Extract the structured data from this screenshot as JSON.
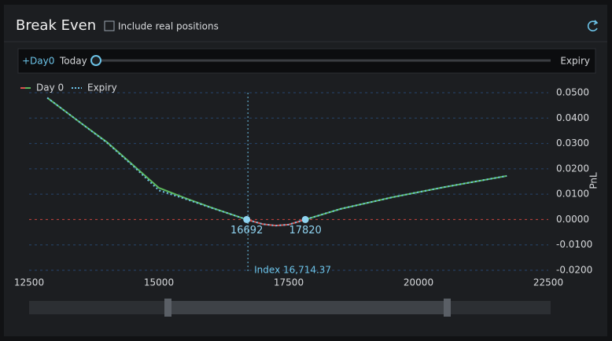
{
  "header": {
    "title": "Break Even",
    "checkbox_label": "Include real positions"
  },
  "toolbar": {
    "day_label": "+Day0",
    "start_label": "Today",
    "end_label": "Expiry"
  },
  "chart_data": {
    "type": "line",
    "x": [
      12850,
      13500,
      14000,
      14500,
      15000,
      15500,
      16000,
      16692,
      17000,
      17250,
      17500,
      17820,
      18500,
      19500,
      20500,
      21700
    ],
    "series": [
      {
        "name": "Day 0",
        "color": "#5cb85c",
        "negative_color": "#d9534f",
        "style": "solid",
        "values": [
          0.048,
          0.038,
          0.0305,
          0.0215,
          0.0125,
          0.0085,
          0.0048,
          0,
          -0.0018,
          -0.0024,
          -0.002,
          0,
          0.0042,
          0.0088,
          0.0128,
          0.0172
        ]
      },
      {
        "name": "Expiry",
        "color": "#6cc3e8",
        "style": "dotted",
        "values": [
          0.048,
          0.038,
          0.0303,
          0.0212,
          0.0115,
          0.0082,
          0.0047,
          0,
          -0.0018,
          -0.0024,
          -0.002,
          0,
          0.0042,
          0.0088,
          0.0128,
          0.0172
        ]
      }
    ],
    "break_even": [
      16692,
      17820
    ],
    "index_value": 16714.37,
    "index_label": "Index 16,714.37",
    "y_axis_label": "PnL",
    "xlim": [
      12500,
      22500
    ],
    "xticks": [
      12500,
      15000,
      17500,
      20000,
      22500
    ],
    "ylim": [
      -0.02,
      0.05
    ],
    "yticks": [
      {
        "value": -0.02,
        "label": "-0.0200"
      },
      {
        "value": -0.01,
        "label": "-0.0100"
      },
      {
        "value": 0,
        "label": "0.0000"
      },
      {
        "value": 0.01,
        "label": "0.0100"
      },
      {
        "value": 0.02,
        "label": "0.0200"
      },
      {
        "value": 0.03,
        "label": "0.0300"
      },
      {
        "value": 0.04,
        "label": "0.0400"
      },
      {
        "value": 0.05,
        "label": "0.0500"
      }
    ],
    "grid": true
  }
}
